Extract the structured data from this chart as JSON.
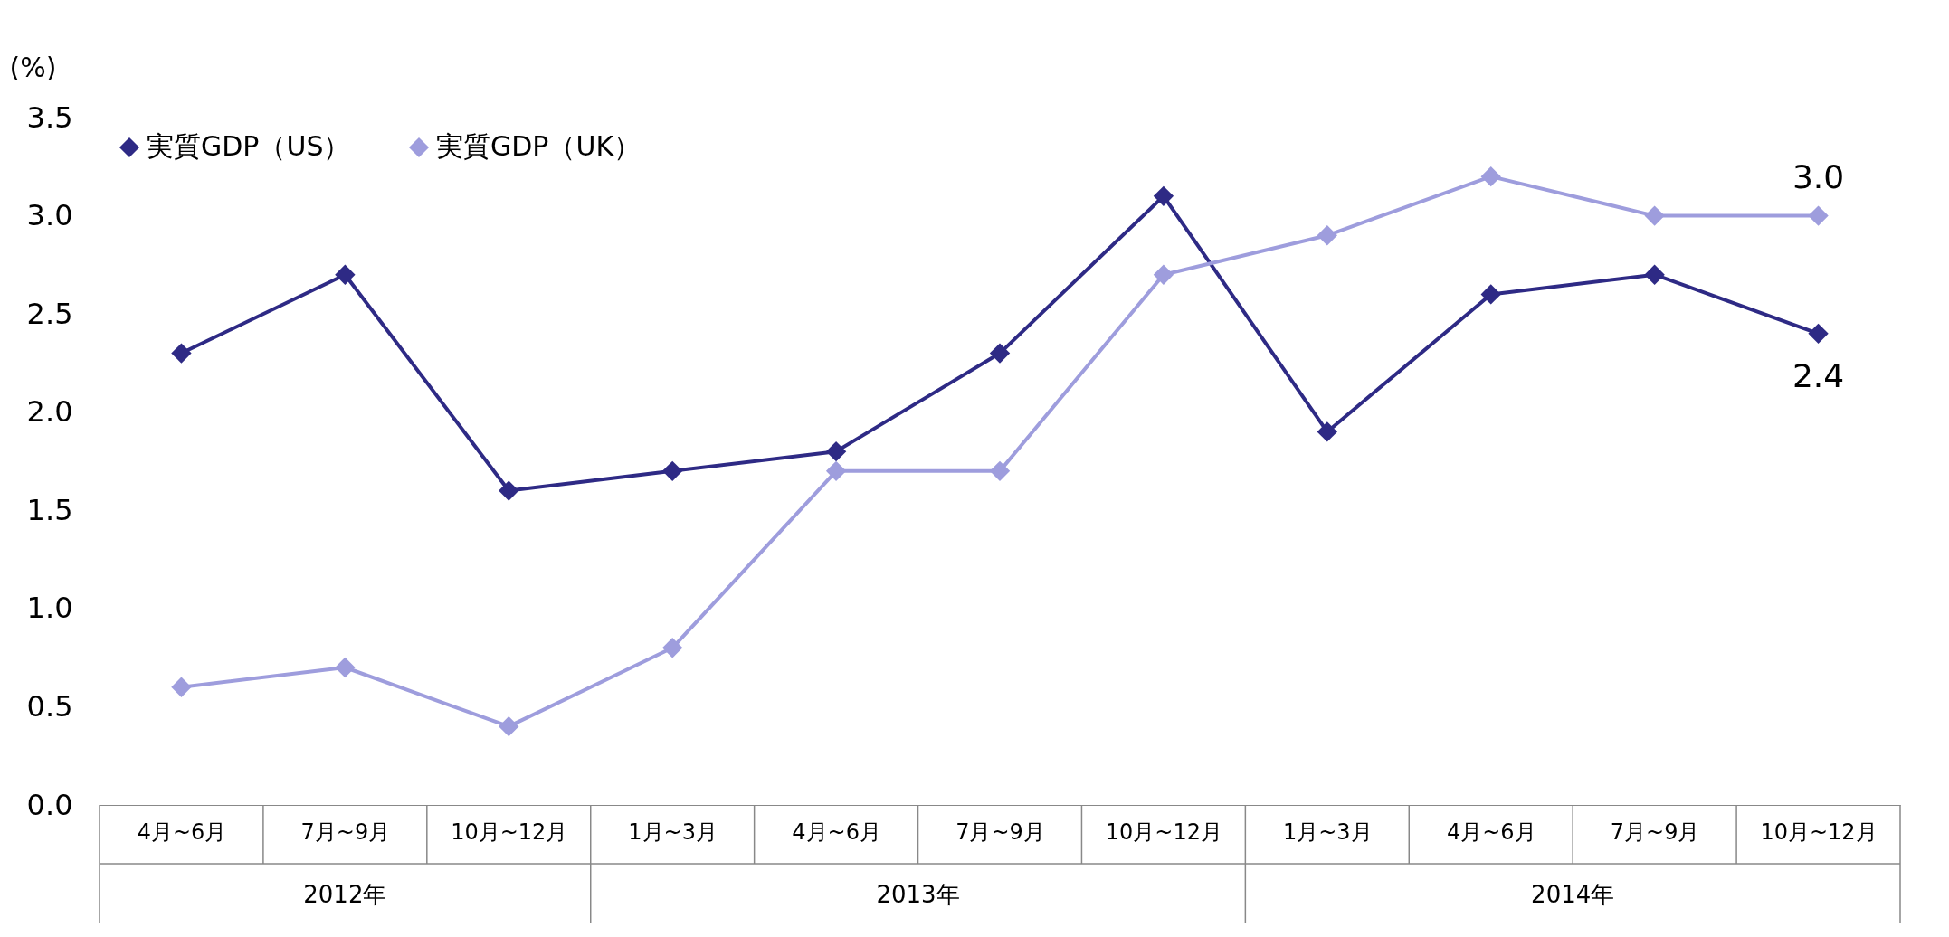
{
  "chart_data": {
    "type": "line",
    "ylabel": "(%)",
    "categories": [
      "4月~6月",
      "7月~9月",
      "10月~12月",
      "1月~3月",
      "4月~6月",
      "7月~9月",
      "10月~12月",
      "1月~3月",
      "4月~6月",
      "7月~9月",
      "10月~12月"
    ],
    "series": [
      {
        "name": "実質GDP（US）",
        "color": "#2e2a85",
        "values": [
          2.3,
          2.7,
          1.6,
          1.7,
          1.8,
          2.3,
          3.1,
          1.9,
          2.6,
          2.7,
          2.4
        ],
        "value_labels": [
          null,
          null,
          null,
          null,
          null,
          null,
          null,
          null,
          null,
          null,
          "2.4"
        ]
      },
      {
        "name": "実質GDP（UK）",
        "color": "#9e9ddd",
        "values": [
          0.6,
          0.7,
          0.4,
          0.8,
          1.7,
          1.7,
          2.7,
          2.9,
          3.2,
          3.0,
          3.0
        ],
        "value_labels": [
          null,
          null,
          null,
          null,
          null,
          null,
          null,
          null,
          null,
          null,
          "3.0"
        ]
      }
    ],
    "annotations": [
      "2012年",
      "2013年",
      "2014年"
    ],
    "ylim": [
      0,
      3.5
    ],
    "yticks": [
      {
        "value": 0,
        "label": "0.0"
      },
      0.5,
      {
        "value": 1,
        "label": "1.0"
      },
      1.5,
      {
        "value": 2,
        "label": "2.0"
      },
      2.5,
      {
        "value": 3,
        "label": "3.0"
      },
      3.5
    ],
    "grid": false,
    "legend": "top left",
    "marker": "diamond",
    "line_style": "solid"
  }
}
